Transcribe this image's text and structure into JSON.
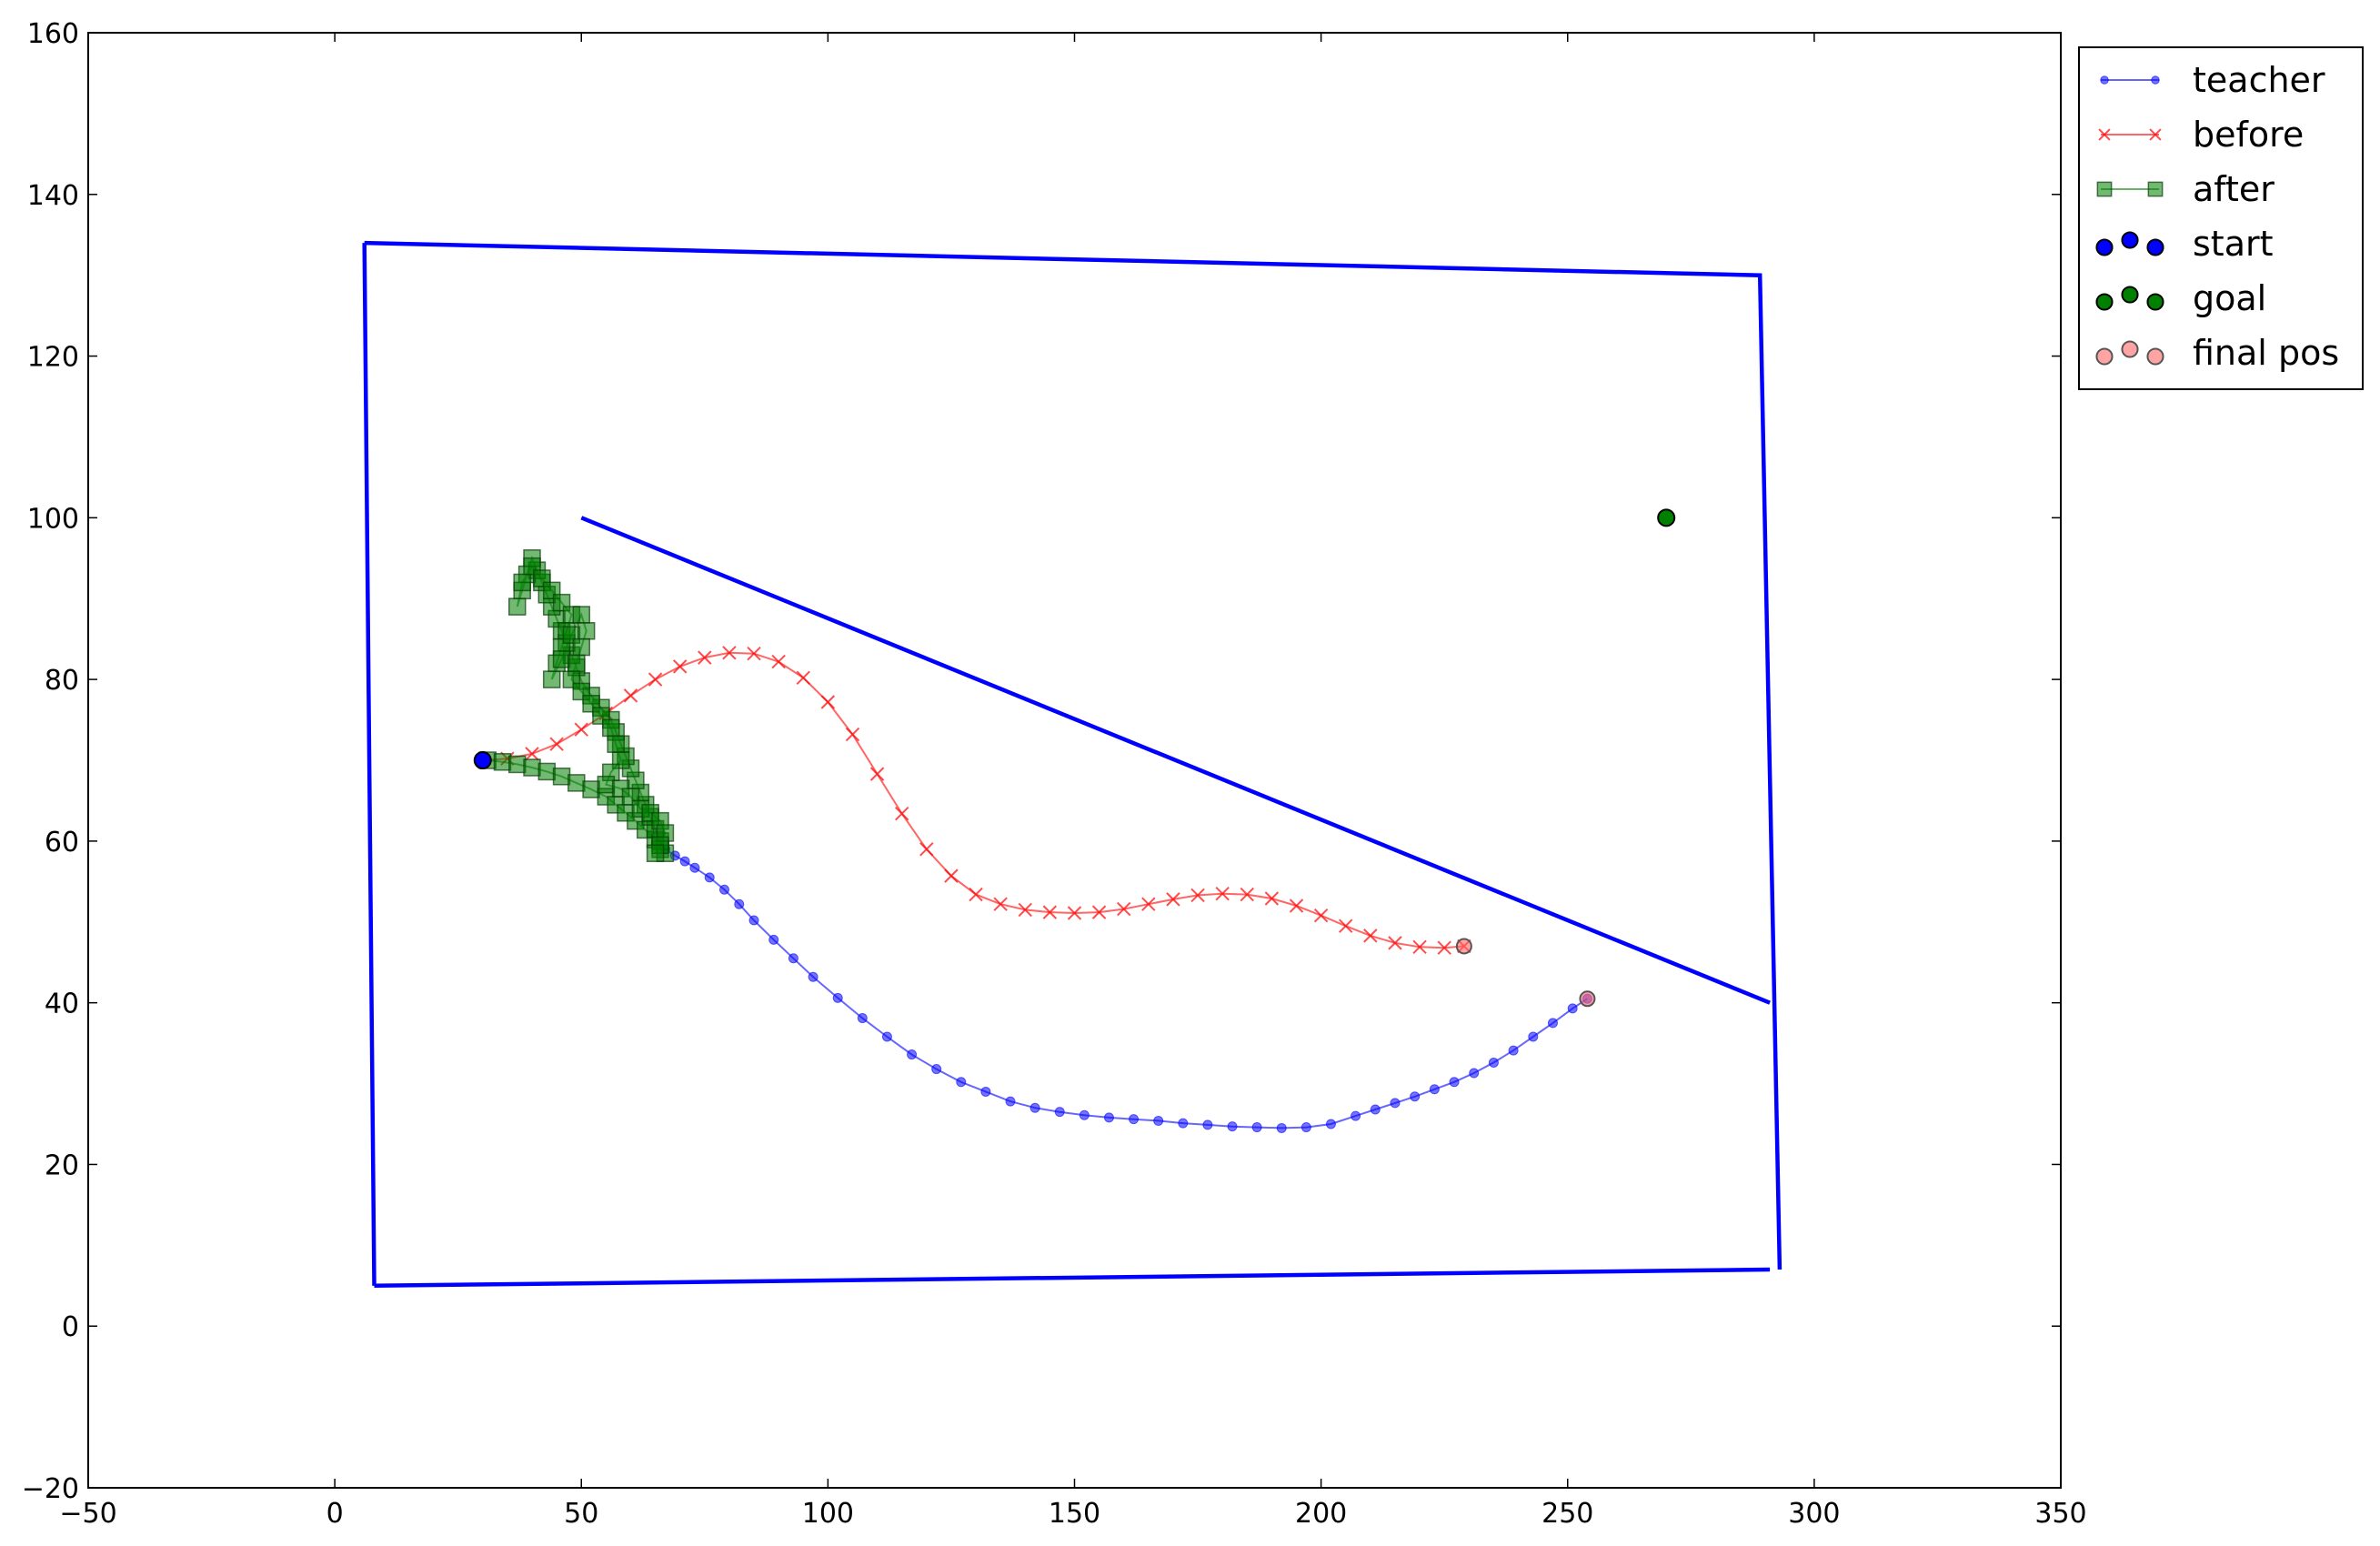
{
  "chart_data": {
    "type": "scatter",
    "title": "",
    "xlabel": "",
    "ylabel": "",
    "xlim": [
      -50,
      350
    ],
    "ylim": [
      -20,
      160
    ],
    "grid": false,
    "legend_placement": "outside-top-right",
    "x_ticks": [
      -50,
      0,
      50,
      100,
      150,
      200,
      250,
      300,
      350
    ],
    "x_tick_labels": [
      "−50",
      "0",
      "50",
      "100",
      "150",
      "200",
      "250",
      "300",
      "350"
    ],
    "y_ticks": [
      -20,
      0,
      20,
      40,
      60,
      80,
      100,
      120,
      140,
      160
    ],
    "y_tick_labels": [
      "−20",
      "0",
      "20",
      "40",
      "60",
      "80",
      "100",
      "120",
      "140",
      "160"
    ],
    "environment_lines": [
      {
        "color": "#0000ff",
        "points": [
          [
            6,
            134
          ],
          [
            289,
            130
          ],
          [
            293,
            7
          ]
        ]
      },
      {
        "color": "#0000ff",
        "points": [
          [
            8,
            5
          ],
          [
            291,
            7
          ]
        ]
      },
      {
        "color": "#0000ff",
        "points": [
          [
            6,
            134
          ],
          [
            8,
            5
          ]
        ]
      },
      {
        "color": "#0000ff",
        "points": [
          [
            50,
            100
          ],
          [
            291,
            40
          ]
        ]
      }
    ],
    "series": [
      {
        "name": "teacher",
        "color": "#0000ff",
        "marker": "dot",
        "points": [
          [
            67,
            59
          ],
          [
            69,
            58.2
          ],
          [
            71,
            57.5
          ],
          [
            73,
            56.7
          ],
          [
            76,
            55.5
          ],
          [
            79,
            54
          ],
          [
            82,
            52.2
          ],
          [
            85,
            50.2
          ],
          [
            89,
            47.8
          ],
          [
            93,
            45.5
          ],
          [
            97,
            43.2
          ],
          [
            102,
            40.6
          ],
          [
            107,
            38.1
          ],
          [
            112,
            35.8
          ],
          [
            117,
            33.6
          ],
          [
            122,
            31.8
          ],
          [
            127,
            30.2
          ],
          [
            132,
            29
          ],
          [
            137,
            27.8
          ],
          [
            142,
            27
          ],
          [
            147,
            26.5
          ],
          [
            152,
            26.1
          ],
          [
            157,
            25.8
          ],
          [
            162,
            25.6
          ],
          [
            167,
            25.4
          ],
          [
            172,
            25.1
          ],
          [
            177,
            24.9
          ],
          [
            182,
            24.7
          ],
          [
            187,
            24.6
          ],
          [
            192,
            24.5
          ],
          [
            197,
            24.6
          ],
          [
            202,
            25
          ],
          [
            207,
            26
          ],
          [
            211,
            26.8
          ],
          [
            215,
            27.6
          ],
          [
            219,
            28.4
          ],
          [
            223,
            29.3
          ],
          [
            227,
            30.2
          ],
          [
            231,
            31.3
          ],
          [
            235,
            32.6
          ],
          [
            239,
            34.1
          ],
          [
            243,
            35.8
          ],
          [
            247,
            37.5
          ],
          [
            251,
            39.3
          ],
          [
            254,
            40.5
          ]
        ]
      },
      {
        "name": "before",
        "color": "#ff0000",
        "marker": "x",
        "points": [
          [
            30,
            70
          ],
          [
            35,
            70.2
          ],
          [
            40,
            70.8
          ],
          [
            45,
            72
          ],
          [
            50,
            73.8
          ],
          [
            55,
            75.8
          ],
          [
            60,
            78
          ],
          [
            65,
            80
          ],
          [
            70,
            81.6
          ],
          [
            75,
            82.7
          ],
          [
            80,
            83.3
          ],
          [
            85,
            83.2
          ],
          [
            90,
            82.2
          ],
          [
            95,
            80.2
          ],
          [
            100,
            77.2
          ],
          [
            105,
            73.2
          ],
          [
            110,
            68.3
          ],
          [
            115,
            63.4
          ],
          [
            120,
            59
          ],
          [
            125,
            55.7
          ],
          [
            130,
            53.4
          ],
          [
            135,
            52.2
          ],
          [
            140,
            51.5
          ],
          [
            145,
            51.2
          ],
          [
            150,
            51.1
          ],
          [
            155,
            51.2
          ],
          [
            160,
            51.6
          ],
          [
            165,
            52.2
          ],
          [
            170,
            52.8
          ],
          [
            175,
            53.3
          ],
          [
            180,
            53.5
          ],
          [
            185,
            53.4
          ],
          [
            190,
            52.9
          ],
          [
            195,
            52
          ],
          [
            200,
            50.8
          ],
          [
            205,
            49.5
          ],
          [
            210,
            48.3
          ],
          [
            215,
            47.4
          ],
          [
            220,
            46.9
          ],
          [
            225,
            46.8
          ],
          [
            229,
            47
          ]
        ]
      },
      {
        "name": "after",
        "color": "#008000",
        "marker": "square",
        "points": [
          [
            31,
            70
          ],
          [
            34,
            69.8
          ],
          [
            37,
            69.5
          ],
          [
            40,
            69.1
          ],
          [
            43,
            68.6
          ],
          [
            46,
            68
          ],
          [
            49,
            67.2
          ],
          [
            52,
            66.4
          ],
          [
            55,
            65.5
          ],
          [
            57,
            64.5
          ],
          [
            59,
            63.5
          ],
          [
            61,
            62.5
          ],
          [
            63,
            61.4
          ],
          [
            65,
            60.2
          ],
          [
            66,
            59
          ],
          [
            67,
            58.5
          ],
          [
            66,
            60
          ],
          [
            65,
            61.5
          ],
          [
            64,
            63
          ],
          [
            63,
            64.5
          ],
          [
            62,
            66
          ],
          [
            61,
            67.5
          ],
          [
            60,
            69
          ],
          [
            59,
            70.5
          ],
          [
            58,
            72
          ],
          [
            57,
            73.5
          ],
          [
            56,
            75
          ],
          [
            54,
            76.5
          ],
          [
            52,
            78
          ],
          [
            50,
            79.8
          ],
          [
            49,
            81.5
          ],
          [
            48,
            83
          ],
          [
            47,
            84.5
          ],
          [
            46,
            86
          ],
          [
            45,
            87.5
          ],
          [
            44,
            89
          ],
          [
            43,
            90.5
          ],
          [
            42,
            92
          ],
          [
            41,
            93.5
          ],
          [
            40,
            95
          ],
          [
            39,
            93
          ],
          [
            38,
            91
          ],
          [
            37,
            89
          ],
          [
            38,
            92
          ],
          [
            40,
            94
          ],
          [
            42,
            92.5
          ],
          [
            44,
            91
          ],
          [
            46,
            89.5
          ],
          [
            48,
            88
          ],
          [
            47,
            86
          ],
          [
            46,
            84
          ],
          [
            45,
            82
          ],
          [
            44,
            80
          ],
          [
            46,
            82.5
          ],
          [
            48,
            85.5
          ],
          [
            50,
            88
          ],
          [
            51,
            86
          ],
          [
            50,
            84
          ],
          [
            49,
            82
          ],
          [
            48,
            80
          ],
          [
            50,
            78.5
          ],
          [
            52,
            77
          ],
          [
            54,
            75.5
          ],
          [
            56,
            74
          ],
          [
            57,
            72
          ],
          [
            58,
            70
          ],
          [
            56,
            68.5
          ],
          [
            55,
            67
          ],
          [
            58,
            66.5
          ],
          [
            60,
            65.5
          ],
          [
            62,
            64
          ],
          [
            64,
            63.5
          ],
          [
            66,
            62.5
          ],
          [
            67,
            61
          ],
          [
            66,
            59.5
          ],
          [
            65,
            58.5
          ]
        ]
      },
      {
        "name": "start",
        "color": "#0000ff",
        "marker": "circle",
        "points": [
          [
            30,
            70
          ]
        ]
      },
      {
        "name": "goal",
        "color": "#008000",
        "marker": "circle",
        "points": [
          [
            270,
            100
          ]
        ]
      },
      {
        "name": "final pos",
        "color": "#ff6666",
        "marker": "circle",
        "points": [
          [
            229,
            47
          ],
          [
            254,
            40.5
          ]
        ]
      }
    ]
  },
  "legend": {
    "entries": [
      "teacher",
      "before",
      "after",
      "start",
      "goal",
      "final pos"
    ]
  }
}
